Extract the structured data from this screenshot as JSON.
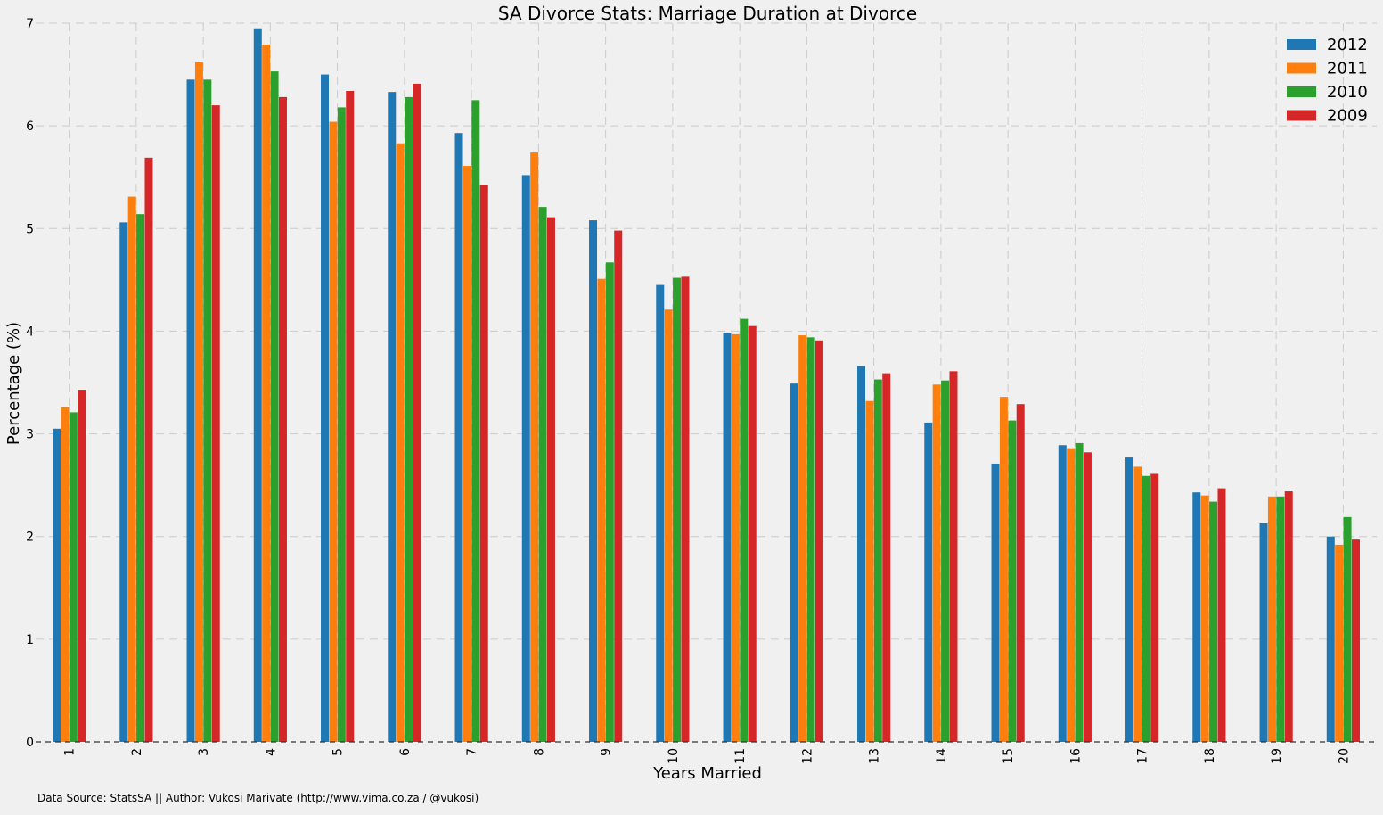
{
  "chart_data": {
    "type": "bar",
    "title": "SA Divorce Stats: Marriage Duration at Divorce",
    "xlabel": "Years Married",
    "ylabel": "Percentage (%)",
    "ylim": [
      0,
      7
    ],
    "yticks": [
      "0",
      "1",
      "2",
      "3",
      "4",
      "5",
      "6",
      "7"
    ],
    "grid": true,
    "legend_position": "top-right",
    "categories": [
      "1",
      "2",
      "3",
      "4",
      "5",
      "6",
      "7",
      "8",
      "9",
      "10",
      "11",
      "12",
      "13",
      "14",
      "15",
      "16",
      "17",
      "18",
      "19",
      "20"
    ],
    "series": [
      {
        "name": "2012",
        "color": "#1f77b4",
        "values": [
          3.05,
          5.06,
          6.45,
          6.95,
          6.5,
          6.33,
          5.93,
          5.52,
          5.08,
          4.45,
          3.98,
          3.49,
          3.66,
          3.11,
          2.71,
          2.89,
          2.77,
          2.43,
          2.13,
          2.0
        ]
      },
      {
        "name": "2011",
        "color": "#ff7f0e",
        "values": [
          3.26,
          5.31,
          6.62,
          6.79,
          6.04,
          5.83,
          5.61,
          5.74,
          4.51,
          4.21,
          3.97,
          3.96,
          3.32,
          3.48,
          3.36,
          2.86,
          2.68,
          2.4,
          2.39,
          1.92
        ]
      },
      {
        "name": "2010",
        "color": "#2ca02c",
        "values": [
          3.21,
          5.14,
          6.45,
          6.53,
          6.18,
          6.28,
          6.25,
          5.21,
          4.67,
          4.52,
          4.12,
          3.94,
          3.53,
          3.52,
          3.13,
          2.91,
          2.59,
          2.34,
          2.39,
          2.19
        ]
      },
      {
        "name": "2009",
        "color": "#d62728",
        "values": [
          3.43,
          5.69,
          6.2,
          6.28,
          6.34,
          6.41,
          5.42,
          5.11,
          4.98,
          4.53,
          4.05,
          3.91,
          3.59,
          3.61,
          3.29,
          2.82,
          2.61,
          2.47,
          2.44,
          1.97
        ]
      }
    ]
  },
  "footer": {
    "source_note": "Data Source: StatsSA || Author: Vukosi Marivate (http://www.vima.co.za / @vukosi)"
  }
}
